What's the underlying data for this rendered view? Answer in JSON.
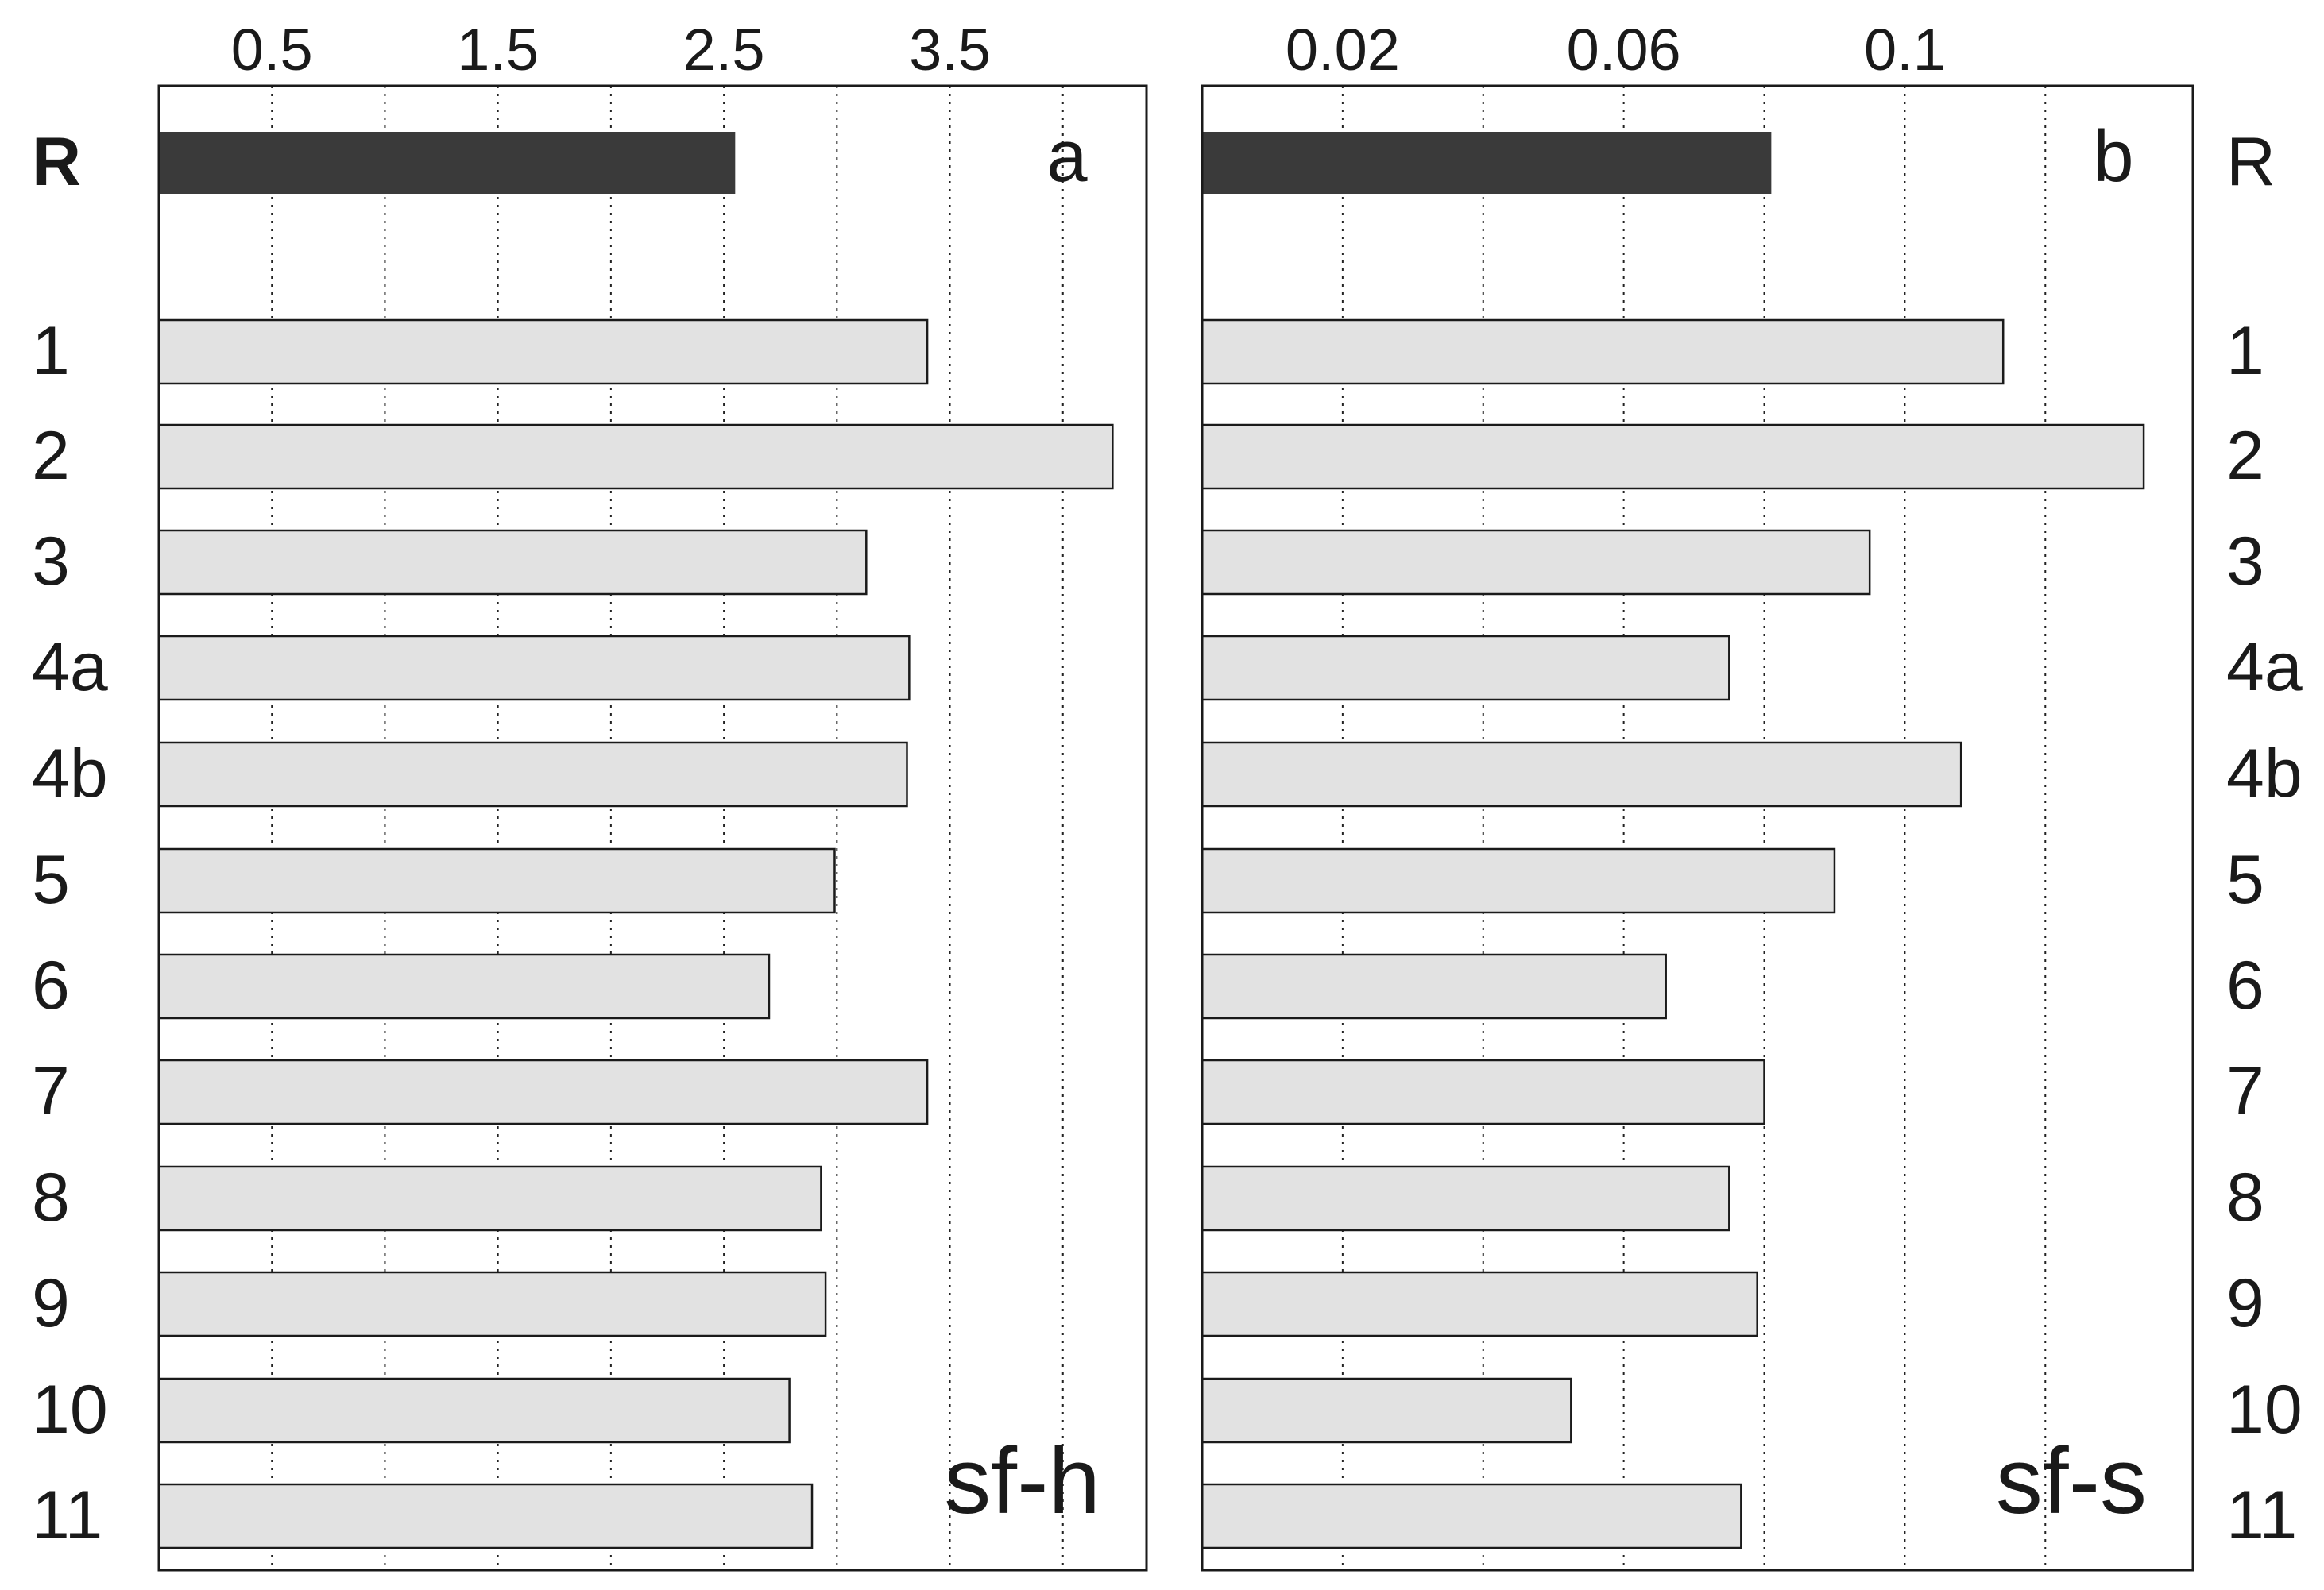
{
  "chart_data": [
    {
      "type": "bar",
      "orientation": "horizontal",
      "panel_label": "a",
      "corner_label": "sf-h",
      "categories": [
        "R",
        "1",
        "2",
        "3",
        "4a",
        "4b",
        "5",
        "6",
        "7",
        "8",
        "9",
        "10",
        "11"
      ],
      "values": [
        2.55,
        3.4,
        4.22,
        3.13,
        3.32,
        3.31,
        2.99,
        2.7,
        3.4,
        2.93,
        2.95,
        2.79,
        2.89
      ],
      "highlight_category": "R",
      "xticks": [
        "0.5",
        "1.5",
        "2.5",
        "3.5"
      ],
      "xgrid": [
        0.5,
        1.0,
        1.5,
        2.0,
        2.5,
        3.0,
        3.5,
        4.0
      ],
      "xlim": [
        0,
        4.37
      ],
      "grid": true,
      "tick_position": "top",
      "category_label_side": "left"
    },
    {
      "type": "bar",
      "orientation": "horizontal",
      "panel_label": "b",
      "corner_label": "sf-s",
      "categories": [
        "R",
        "1",
        "2",
        "3",
        "4a",
        "4b",
        "5",
        "6",
        "7",
        "8",
        "9",
        "10",
        "11"
      ],
      "values": [
        0.081,
        0.114,
        0.134,
        0.095,
        0.075,
        0.108,
        0.09,
        0.066,
        0.08,
        0.075,
        0.079,
        0.0525,
        0.0767
      ],
      "highlight_category": "R",
      "xticks": [
        "0.02",
        "0.06",
        "0.1"
      ],
      "xgrid": [
        0.02,
        0.04,
        0.06,
        0.08,
        0.1,
        0.12
      ],
      "xlim": [
        0,
        141
      ],
      "xlim_note_removed": true,
      "grid": true,
      "tick_position": "top",
      "category_label_side": "right"
    }
  ],
  "colors": {
    "highlight_bar": "#3a3a3a",
    "bar_fill": "#e2e2e2",
    "bar_stroke": "#1a1a1a",
    "frame": "#1a1a1a",
    "grid": "#222222",
    "text": "#1a1a1a"
  }
}
